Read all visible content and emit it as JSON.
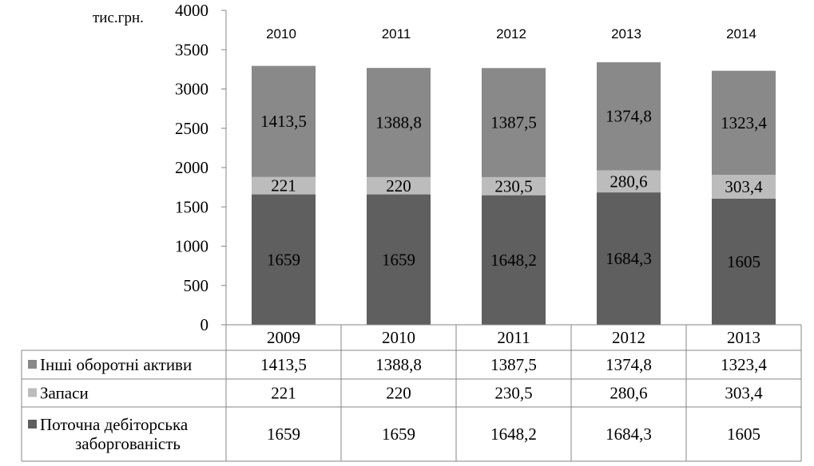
{
  "chart_data": {
    "type": "bar",
    "stacked": true,
    "unit_label": "тис.грн.",
    "categories": [
      "2009",
      "2010",
      "2011",
      "2012",
      "2013"
    ],
    "top_labels": [
      "2010",
      "2011",
      "2012",
      "2013",
      "2014"
    ],
    "ylim": [
      0,
      4000
    ],
    "yticks": [
      0,
      500,
      1000,
      1500,
      2000,
      2500,
      3000,
      3500,
      4000
    ],
    "grid": false,
    "legend_placement": "data-table-left",
    "series": [
      {
        "name": "Поточна дебіторська заборгованість",
        "name_lines": [
          "Поточна дебіторська",
          "заборгованість"
        ],
        "values": [
          1659,
          1659,
          1648.2,
          1684.3,
          1605
        ],
        "labels": [
          "1659",
          "1659",
          "1648,2",
          "1684,3",
          "1605"
        ],
        "color": "#5f5f5f"
      },
      {
        "name": "Запаси",
        "name_lines": [
          "Запаси"
        ],
        "values": [
          221,
          220,
          230.5,
          280.6,
          303.4
        ],
        "labels": [
          "221",
          "220",
          "230,5",
          "280,6",
          "303,4"
        ],
        "color": "#bcbcbc"
      },
      {
        "name": "Інші оборотні активи",
        "name_lines": [
          "Інші оборотні активи"
        ],
        "values": [
          1413.5,
          1388.8,
          1387.5,
          1374.8,
          1323.4
        ],
        "labels": [
          "1413,5",
          "1388,8",
          "1387,5",
          "1374,8",
          "1323,4"
        ],
        "color": "#898989"
      }
    ]
  }
}
